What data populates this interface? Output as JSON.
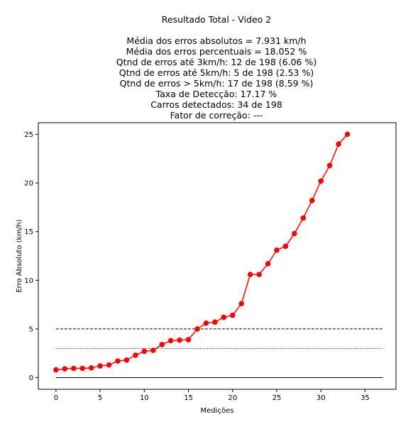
{
  "chart_data": {
    "type": "line",
    "title_lines": [
      "Resultado Total - Video 2",
      "",
      "Média dos erros absolutos =  7.931 km/h",
      "Média dos erros percentuais = 18.052 %",
      "Qtnd de erros até 3km/h: 12 de 198 (6.06 %)",
      "Qtnd de erros até 5km/h: 5 de 198 (2.53 %)",
      "Qtnd de erros > 5km/h: 17 de 198 (8.59 %)",
      "Taxa de Detecção: 17.17 %",
      "Carros detectados: 34 de 198",
      "Fator de correção: ---"
    ],
    "xlabel": "Medições",
    "ylabel": "Erro Absoluto (km/h)",
    "xlim": [
      -2,
      38.5
    ],
    "ylim": [
      -1.2,
      26.2
    ],
    "x_ticks": [
      0,
      5,
      10,
      15,
      20,
      25,
      30,
      35
    ],
    "y_ticks": [
      0,
      5,
      10,
      15,
      20,
      25
    ],
    "grid": false,
    "series": [
      {
        "color": "#ff0000",
        "marker": "circle",
        "x": [
          0,
          1,
          2,
          3,
          4,
          5,
          6,
          7,
          8,
          9,
          10,
          11,
          12,
          13,
          14,
          15,
          16,
          17,
          18,
          19,
          20,
          21,
          22,
          23,
          24,
          25,
          26,
          27,
          28,
          29,
          30,
          31,
          32,
          33
        ],
        "values": [
          0.8,
          0.9,
          0.95,
          0.95,
          1.0,
          1.2,
          1.3,
          1.7,
          1.8,
          2.3,
          2.7,
          2.8,
          3.4,
          3.8,
          3.85,
          3.9,
          5.0,
          5.6,
          5.7,
          6.2,
          6.4,
          7.6,
          10.6,
          10.6,
          11.7,
          13.1,
          13.5,
          14.8,
          16.4,
          18.2,
          20.2,
          21.8,
          24.0,
          25.0
        ]
      }
    ],
    "reference_lines": [
      {
        "y": 5,
        "x_range": [
          0,
          37
        ],
        "style": "dashed",
        "color": "#000000"
      },
      {
        "y": 3,
        "x_range": [
          0,
          37
        ],
        "style": "dotted",
        "color": "#000000"
      },
      {
        "y": 0,
        "x_range": [
          0,
          37
        ],
        "style": "solid",
        "color": "#000000"
      }
    ]
  }
}
